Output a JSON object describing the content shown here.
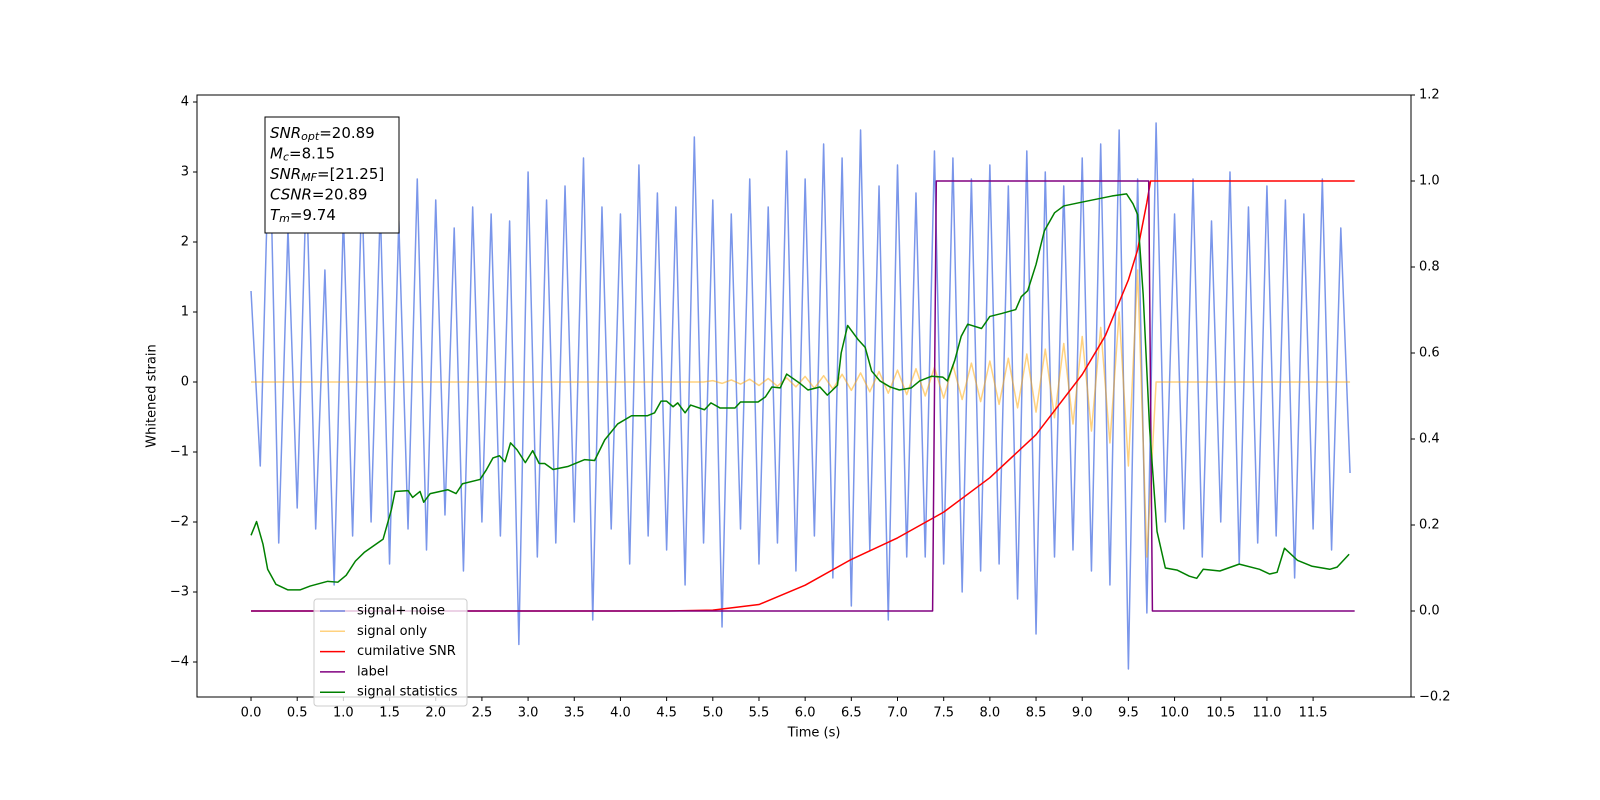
{
  "chart_data": {
    "type": "line",
    "xlabel": "Time (s)",
    "ylabel": "Whitened strain",
    "xlim": [
      -0.585,
      12.56
    ],
    "ylim": [
      -4.5,
      4.1
    ],
    "y2lim": [
      -0.2,
      1.2
    ],
    "xticks": [
      {
        "value": 0,
        "label": "0.0"
      },
      0.5,
      {
        "value": 1,
        "label": "1.0"
      },
      1.5,
      {
        "value": 2,
        "label": "2.0"
      },
      2.5,
      {
        "value": 3,
        "label": "3.0"
      },
      3.5,
      {
        "value": 4,
        "label": "4.0"
      },
      4.5,
      {
        "value": 5,
        "label": "5.0"
      },
      5.5,
      {
        "value": 6,
        "label": "6.0"
      },
      6.5,
      {
        "value": 7,
        "label": "7.0"
      },
      7.5,
      {
        "value": 8,
        "label": "8.0"
      },
      8.5,
      {
        "value": 9,
        "label": "9.0"
      },
      9.5,
      {
        "value": 10,
        "label": "10.0"
      },
      10.5,
      {
        "value": 11,
        "label": "11.0"
      },
      11.5
    ],
    "yticks": [
      {
        "value": -4,
        "label": "−4"
      },
      {
        "value": -3,
        "label": "−3"
      },
      {
        "value": -2,
        "label": "−2"
      },
      {
        "value": -1,
        "label": "−1"
      },
      0,
      1,
      2,
      3,
      4
    ],
    "y2ticks": [
      {
        "value": -0.2,
        "label": "−0.2"
      },
      {
        "value": 0,
        "label": "0.0"
      },
      0.2,
      0.4,
      0.6,
      0.8,
      {
        "value": 1,
        "label": "1.0"
      },
      1.2
    ],
    "legend": "lower left",
    "annotation": [
      {
        "symbol": "SNR",
        "sub": "opt",
        "text": "=20.89"
      },
      {
        "symbol": "M",
        "sub": "c",
        "text": "=8.15"
      },
      {
        "symbol": "SNR",
        "sub": "MF",
        "text": "=[21.25]"
      },
      {
        "symbol": "CSNR",
        "text": "=20.89"
      },
      {
        "symbol": "T",
        "sub": "m",
        "text": "=9.74"
      }
    ],
    "series": [
      {
        "name": "signal+ noise",
        "color": "#4169e1",
        "alpha": 0.7,
        "x": [
          0,
          0.1,
          0.2,
          0.3,
          0.4,
          0.5,
          0.6,
          0.7,
          0.8,
          0.9,
          1,
          1.1,
          1.2,
          1.3,
          1.4,
          1.5,
          1.6,
          1.7,
          1.8,
          1.9,
          2,
          2.1,
          2.2,
          2.3,
          2.4,
          2.5,
          2.6,
          2.7,
          2.8,
          2.9,
          3,
          3.1,
          3.2,
          3.3,
          3.4,
          3.5,
          3.6,
          3.7,
          3.8,
          3.9,
          4,
          4.1,
          4.2,
          4.3,
          4.4,
          4.5,
          4.6,
          4.7,
          4.8,
          4.9,
          5,
          5.1,
          5.2,
          5.3,
          5.4,
          5.5,
          5.6,
          5.7,
          5.8,
          5.9,
          6,
          6.1,
          6.2,
          6.3,
          6.4,
          6.5,
          6.6,
          6.7,
          6.8,
          6.9,
          7,
          7.1,
          7.2,
          7.3,
          7.4,
          7.5,
          7.6,
          7.7,
          7.8,
          7.9,
          8,
          8.1,
          8.2,
          8.3,
          8.4,
          8.5,
          8.6,
          8.7,
          8.8,
          8.9,
          9,
          9.1,
          9.2,
          9.3,
          9.4,
          9.5,
          9.6,
          9.7,
          9.8,
          9.9,
          10,
          10.1,
          10.2,
          10.3,
          10.4,
          10.5,
          10.6,
          10.7,
          10.8,
          10.9,
          11,
          11.1,
          11.2,
          11.3,
          11.4,
          11.5,
          11.6,
          11.7,
          11.8,
          11.9
        ],
        "values": [
          1.3,
          -1.2,
          3.7,
          -2.3,
          2.2,
          -1.8,
          2.9,
          -2.1,
          1.6,
          -2.9,
          2.4,
          -2.2,
          2.8,
          -2.0,
          2.5,
          -2.6,
          2.3,
          -2.1,
          2.9,
          -2.4,
          2.6,
          -1.9,
          2.2,
          -2.7,
          2.5,
          -2.0,
          2.4,
          -2.2,
          2.3,
          -3.75,
          3.0,
          -2.5,
          2.6,
          -2.3,
          2.8,
          -2.0,
          3.2,
          -3.4,
          2.5,
          -2.1,
          2.4,
          -2.6,
          3.1,
          -2.2,
          2.7,
          -2.4,
          2.5,
          -2.9,
          3.5,
          -2.3,
          2.6,
          -3.5,
          2.4,
          -2.1,
          2.9,
          -2.6,
          2.5,
          -2.3,
          3.3,
          -2.7,
          2.9,
          -2.2,
          3.4,
          -2.8,
          3.2,
          -3.2,
          3.6,
          -2.4,
          2.8,
          -3.4,
          3.1,
          -2.5,
          2.7,
          -2.5,
          3.3,
          -2.6,
          3.2,
          -3.0,
          2.9,
          -2.7,
          3.1,
          -2.6,
          2.8,
          -3.1,
          3.3,
          -3.6,
          3.0,
          -2.5,
          2.8,
          -2.4,
          3.2,
          -2.7,
          3.4,
          -2.9,
          3.6,
          -4.1,
          2.9,
          -3.3,
          3.7,
          -2.0,
          2.4,
          -2.1,
          2.9,
          -2.5,
          2.3,
          -2.0,
          3.0,
          -2.6,
          2.5,
          -2.3,
          2.8,
          -2.2,
          2.6,
          -2.8,
          2.4,
          -2.1,
          2.9,
          -2.4,
          2.2,
          -1.3
        ]
      },
      {
        "name": "signal only",
        "color": "#ffa500",
        "alpha": 0.5,
        "x": [
          0,
          0.1,
          0.2,
          0.3,
          0.4,
          0.5,
          0.6,
          0.7,
          0.8,
          0.9,
          1,
          1.1,
          1.2,
          1.3,
          1.4,
          1.5,
          1.6,
          1.7,
          1.8,
          1.9,
          2,
          2.1,
          2.2,
          2.3,
          2.4,
          2.5,
          2.6,
          2.7,
          2.8,
          2.9,
          3,
          3.1,
          3.2,
          3.3,
          3.4,
          3.5,
          3.6,
          3.7,
          3.8,
          3.9,
          4,
          4.1,
          4.2,
          4.3,
          4.4,
          4.5,
          4.6,
          4.7,
          4.8,
          4.9,
          5,
          5.1,
          5.2,
          5.3,
          5.4,
          5.5,
          5.6,
          5.7,
          5.8,
          5.9,
          6,
          6.1,
          6.2,
          6.3,
          6.4,
          6.5,
          6.6,
          6.7,
          6.8,
          6.9,
          7,
          7.1,
          7.2,
          7.3,
          7.4,
          7.5,
          7.6,
          7.7,
          7.8,
          7.9,
          8,
          8.1,
          8.2,
          8.3,
          8.4,
          8.5,
          8.6,
          8.7,
          8.8,
          8.9,
          9,
          9.1,
          9.2,
          9.3,
          9.4,
          9.5,
          9.6,
          9.7,
          9.8,
          9.9,
          10,
          10.1,
          10.2,
          10.3,
          10.4,
          10.5,
          10.6,
          10.7,
          10.8,
          10.9,
          11,
          11.1,
          11.2,
          11.3,
          11.4,
          11.5,
          11.6,
          11.7,
          11.8,
          11.9
        ],
        "values": [
          0,
          0,
          0,
          0,
          0,
          0,
          0,
          0,
          0,
          0,
          0,
          0,
          0,
          0,
          0,
          0,
          0,
          0,
          0,
          0,
          0,
          0,
          0,
          0,
          0,
          0,
          0,
          0,
          0,
          0,
          0,
          0,
          0,
          0,
          0,
          0,
          0,
          0,
          0,
          0,
          0,
          0,
          0,
          0,
          0,
          0,
          0,
          0,
          0,
          0,
          0.02,
          -0.02,
          0.03,
          -0.03,
          0.04,
          -0.05,
          0.05,
          -0.06,
          0.06,
          -0.07,
          0.08,
          -0.09,
          0.09,
          -0.1,
          0.11,
          -0.12,
          0.13,
          -0.14,
          0.15,
          -0.16,
          0.17,
          -0.18,
          0.19,
          -0.2,
          0.21,
          -0.23,
          0.24,
          -0.25,
          0.27,
          -0.28,
          0.3,
          -0.32,
          0.34,
          -0.37,
          0.4,
          -0.43,
          0.47,
          -0.51,
          0.55,
          -0.6,
          0.65,
          -0.7,
          0.78,
          -0.87,
          1.0,
          -1.2,
          1.6,
          -2.5,
          0,
          0,
          0,
          0,
          0,
          0,
          0,
          0,
          0,
          0,
          0,
          0,
          0,
          0,
          0,
          0,
          0,
          0,
          0,
          0,
          0,
          0
        ]
      },
      {
        "name": "cumilative SNR",
        "color": "#ff0000",
        "axis": "y2",
        "x": [
          0,
          4.5,
          5,
          5.5,
          6,
          6.5,
          7,
          7.5,
          8,
          8.5,
          9,
          9.25,
          9.5,
          9.6,
          9.7,
          9.74,
          10,
          11.95
        ],
        "values": [
          0,
          0,
          0.002,
          0.015,
          0.06,
          0.12,
          0.17,
          0.23,
          0.31,
          0.41,
          0.55,
          0.64,
          0.77,
          0.84,
          0.95,
          1,
          1,
          1
        ]
      },
      {
        "name": "label",
        "color": "#800080",
        "axis": "y2",
        "x": [
          0,
          7.38,
          7.42,
          9.72,
          9.76,
          11.95
        ],
        "values": [
          0,
          0,
          1,
          1,
          0,
          0
        ]
      },
      {
        "name": "signal statistics",
        "color": "#008000",
        "axis": "y2",
        "x": [
          0,
          0.06,
          0.13,
          0.18,
          0.27,
          0.4,
          0.53,
          0.64,
          0.83,
          0.94,
          1.03,
          1.13,
          1.23,
          1.43,
          1.52,
          1.56,
          1.7,
          1.75,
          1.83,
          1.87,
          1.94,
          2.13,
          2.22,
          2.29,
          2.48,
          2.55,
          2.62,
          2.69,
          2.75,
          2.81,
          2.88,
          2.97,
          3.05,
          3.12,
          3.18,
          3.27,
          3.43,
          3.61,
          3.72,
          3.83,
          3.97,
          4.12,
          4.29,
          4.37,
          4.44,
          4.5,
          4.57,
          4.62,
          4.7,
          4.76,
          4.91,
          4.98,
          5.08,
          5.24,
          5.3,
          5.49,
          5.57,
          5.64,
          5.73,
          5.8,
          5.94,
          6.03,
          6.16,
          6.24,
          6.35,
          6.39,
          6.46,
          6.57,
          6.65,
          6.72,
          6.81,
          6.92,
          7.02,
          7.15,
          7.24,
          7.37,
          7.49,
          7.54,
          7.62,
          7.69,
          7.76,
          7.91,
          8,
          8.13,
          8.28,
          8.34,
          8.41,
          8.5,
          8.59,
          8.7,
          8.8,
          9,
          9.16,
          9.32,
          9.48,
          9.55,
          9.6,
          9.66,
          9.73,
          9.81,
          9.9,
          10.03,
          10.16,
          10.24,
          10.31,
          10.49,
          10.7,
          10.92,
          11.03,
          11.11,
          11.19,
          11.33,
          11.49,
          11.68,
          11.76,
          11.89
        ],
        "values": [
          0.176,
          0.208,
          0.155,
          0.097,
          0.062,
          0.049,
          0.049,
          0.058,
          0.069,
          0.067,
          0.083,
          0.116,
          0.137,
          0.167,
          0.236,
          0.278,
          0.28,
          0.264,
          0.278,
          0.253,
          0.273,
          0.282,
          0.273,
          0.296,
          0.306,
          0.329,
          0.356,
          0.361,
          0.347,
          0.391,
          0.375,
          0.345,
          0.373,
          0.343,
          0.343,
          0.329,
          0.336,
          0.352,
          0.35,
          0.398,
          0.435,
          0.454,
          0.454,
          0.461,
          0.488,
          0.488,
          0.475,
          0.484,
          0.461,
          0.479,
          0.468,
          0.484,
          0.472,
          0.472,
          0.486,
          0.486,
          0.498,
          0.521,
          0.519,
          0.551,
          0.53,
          0.514,
          0.521,
          0.502,
          0.525,
          0.6,
          0.664,
          0.632,
          0.613,
          0.558,
          0.535,
          0.521,
          0.514,
          0.519,
          0.535,
          0.546,
          0.544,
          0.535,
          0.583,
          0.639,
          0.667,
          0.657,
          0.685,
          0.692,
          0.701,
          0.731,
          0.745,
          0.806,
          0.884,
          0.926,
          0.942,
          0.951,
          0.958,
          0.965,
          0.97,
          0.947,
          0.922,
          0.736,
          0.424,
          0.185,
          0.1,
          0.095,
          0.081,
          0.076,
          0.097,
          0.093,
          0.109,
          0.097,
          0.086,
          0.09,
          0.146,
          0.118,
          0.104,
          0.097,
          0.102,
          0.132
        ]
      }
    ]
  }
}
